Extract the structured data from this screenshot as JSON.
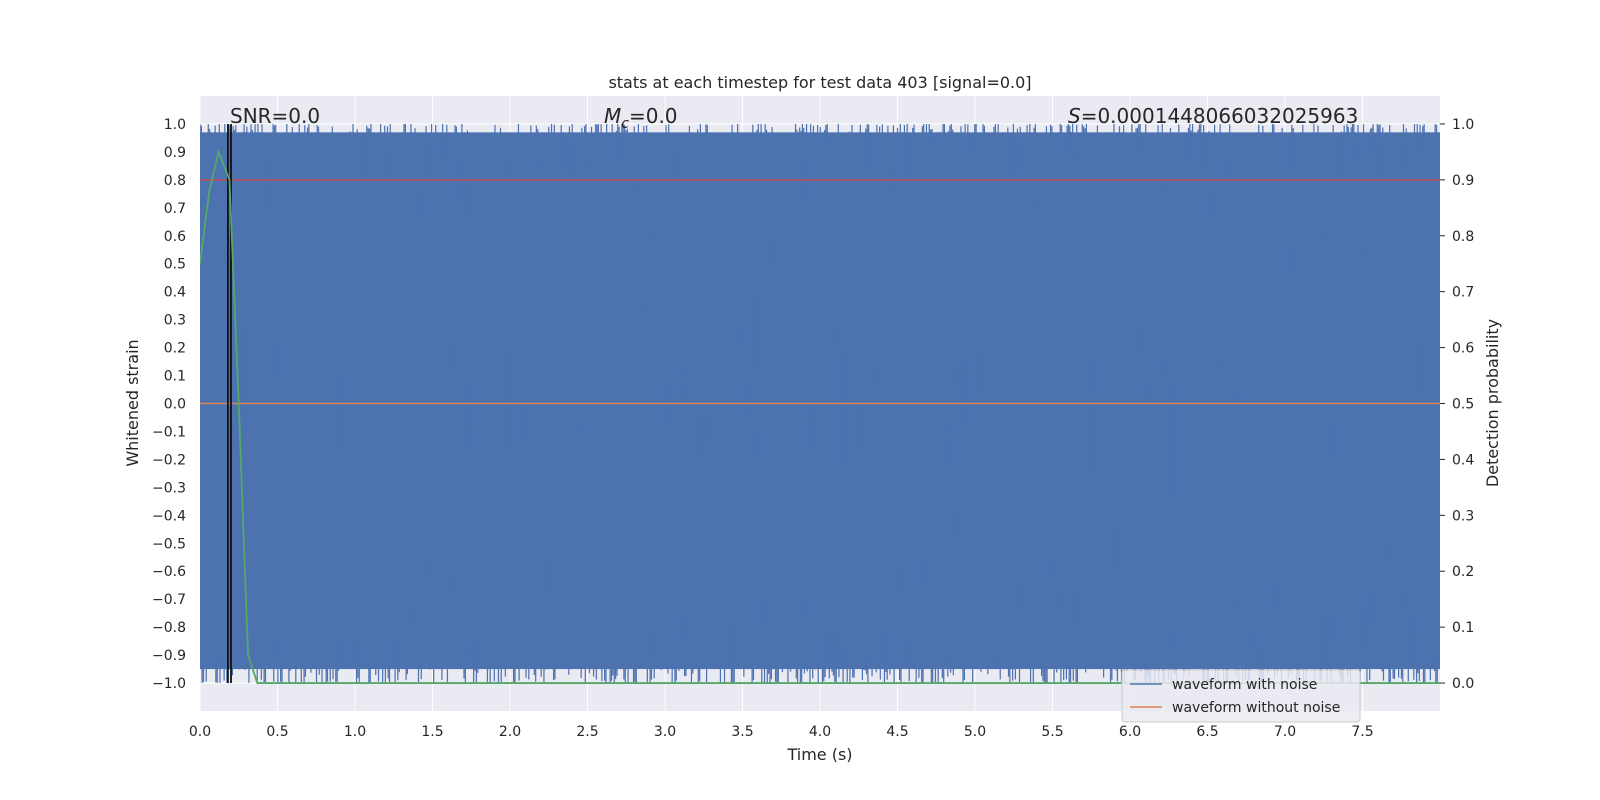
{
  "chart_data": {
    "type": "line",
    "title": "stats at each timestep for test data 403 [signal=0.0]",
    "xlabel": "Time (s)",
    "ylabel": "Whitened strain",
    "y2label": "Detection probability",
    "xlim": [
      0.0,
      8.0
    ],
    "ylim": [
      -1.1,
      1.1
    ],
    "y2lim": [
      -0.05,
      1.05
    ],
    "xticks": [
      "0.0",
      "0.5",
      "1.0",
      "1.5",
      "2.0",
      "2.5",
      "3.0",
      "3.5",
      "4.0",
      "4.5",
      "5.0",
      "5.5",
      "6.0",
      "6.5",
      "7.0",
      "7.5"
    ],
    "yticks": [
      "1.0",
      "0.9",
      "0.8",
      "0.7",
      "0.6",
      "0.5",
      "0.4",
      "0.3",
      "0.2",
      "0.1",
      "0.0",
      "−0.1",
      "−0.2",
      "−0.3",
      "−0.4",
      "−0.5",
      "−0.6",
      "−0.7",
      "−0.8",
      "−0.9",
      "−1.0"
    ],
    "y2ticks": [
      "1.0",
      "0.9",
      "0.8",
      "0.7",
      "0.6",
      "0.5",
      "0.4",
      "0.3",
      "0.2",
      "0.1",
      "0.0"
    ],
    "grid": true,
    "legend_position": "lower-right",
    "series": [
      {
        "name": "waveform with noise",
        "color": "#4c72b0",
        "axis": "left",
        "description": "dense noise filling the band from -1.0 to 1.0 across 0–8 s",
        "range": [
          -1.0,
          1.0
        ]
      },
      {
        "name": "waveform without noise",
        "color": "#dd8452",
        "axis": "left",
        "x": [
          0.0,
          8.0
        ],
        "y": [
          0.0,
          0.0
        ]
      },
      {
        "color": "#55a868",
        "axis": "right",
        "x": [
          0.0,
          0.06,
          0.12,
          0.19,
          0.25,
          0.31,
          0.37,
          0.5,
          1.0,
          2.0,
          3.0,
          4.0,
          5.0,
          6.0,
          7.0,
          8.0
        ],
        "y": [
          0.75,
          0.88,
          0.95,
          0.9,
          0.5,
          0.05,
          0.0,
          0.0,
          0.0,
          0.0,
          0.0,
          0.0,
          0.0,
          0.0,
          0.0,
          0.0
        ]
      }
    ],
    "threshold": {
      "axis": "right",
      "value": 0.9,
      "color": "#c44e52"
    },
    "vlines": [
      0.18,
      0.2
    ],
    "annotations": {
      "snr": "SNR=0.0",
      "mc_symbol": "M",
      "mc_sub": "c",
      "mc_value": "=0.0",
      "s_symbol": "S",
      "s_value": "=0.0001448066032025963"
    },
    "legend": [
      "waveform with noise",
      "waveform without noise"
    ]
  }
}
